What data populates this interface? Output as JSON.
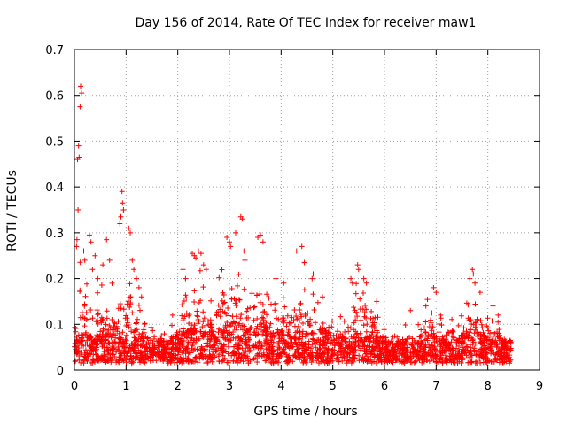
{
  "chart_data": {
    "type": "scatter",
    "title": "Day 156 of 2014, Rate Of TEC Index for receiver maw1",
    "xlabel": "GPS time / hours",
    "ylabel": "ROTI / TECUs",
    "xlim": [
      0,
      9
    ],
    "ylim": [
      0,
      0.7
    ],
    "xticks": [
      "0",
      "1",
      "2",
      "3",
      "4",
      "5",
      "6",
      "7",
      "8",
      "9"
    ],
    "yticks": [
      "0",
      "0.1",
      "0.2",
      "0.3",
      "0.4",
      "0.5",
      "0.6",
      "0.7"
    ],
    "grid": true,
    "marker": "plus",
    "color": "#ff0000",
    "x_range_of_data": [
      0,
      8.45
    ],
    "series": [
      {
        "name": "ROTI",
        "profile": [
          [
            0.0,
            0.03,
            0.1
          ],
          [
            0.1,
            0.05,
            0.25
          ],
          [
            0.2,
            0.05,
            0.28
          ],
          [
            0.3,
            0.04,
            0.22
          ],
          [
            0.4,
            0.04,
            0.18
          ],
          [
            0.5,
            0.05,
            0.16
          ],
          [
            0.6,
            0.06,
            0.18
          ],
          [
            0.7,
            0.06,
            0.2
          ],
          [
            0.8,
            0.04,
            0.12
          ],
          [
            0.9,
            0.06,
            0.25
          ],
          [
            1.0,
            0.05,
            0.24
          ],
          [
            1.1,
            0.04,
            0.22
          ],
          [
            1.2,
            0.04,
            0.15
          ],
          [
            1.3,
            0.03,
            0.1
          ],
          [
            1.4,
            0.03,
            0.08
          ],
          [
            1.5,
            0.03,
            0.08
          ],
          [
            1.6,
            0.03,
            0.07
          ],
          [
            1.7,
            0.03,
            0.07
          ],
          [
            1.8,
            0.03,
            0.07
          ],
          [
            1.9,
            0.04,
            0.09
          ],
          [
            2.0,
            0.04,
            0.1
          ],
          [
            2.1,
            0.05,
            0.15
          ],
          [
            2.2,
            0.05,
            0.18
          ],
          [
            2.3,
            0.06,
            0.24
          ],
          [
            2.4,
            0.05,
            0.22
          ],
          [
            2.5,
            0.05,
            0.16
          ],
          [
            2.6,
            0.05,
            0.14
          ],
          [
            2.7,
            0.05,
            0.16
          ],
          [
            2.8,
            0.06,
            0.2
          ],
          [
            2.9,
            0.06,
            0.24
          ],
          [
            3.0,
            0.07,
            0.22
          ],
          [
            3.1,
            0.07,
            0.2
          ],
          [
            3.2,
            0.07,
            0.22
          ],
          [
            3.3,
            0.06,
            0.18
          ],
          [
            3.4,
            0.06,
            0.18
          ],
          [
            3.5,
            0.06,
            0.22
          ],
          [
            3.6,
            0.07,
            0.22
          ],
          [
            3.7,
            0.06,
            0.16
          ],
          [
            3.8,
            0.06,
            0.15
          ],
          [
            3.9,
            0.05,
            0.14
          ],
          [
            4.0,
            0.05,
            0.15
          ],
          [
            4.1,
            0.05,
            0.16
          ],
          [
            4.2,
            0.05,
            0.17
          ],
          [
            4.3,
            0.05,
            0.18
          ],
          [
            4.4,
            0.05,
            0.2
          ],
          [
            4.5,
            0.05,
            0.16
          ],
          [
            4.6,
            0.05,
            0.15
          ],
          [
            4.7,
            0.04,
            0.14
          ],
          [
            4.8,
            0.04,
            0.12
          ],
          [
            4.9,
            0.04,
            0.11
          ],
          [
            5.0,
            0.04,
            0.1
          ],
          [
            5.1,
            0.04,
            0.1
          ],
          [
            5.2,
            0.04,
            0.11
          ],
          [
            5.3,
            0.04,
            0.12
          ],
          [
            5.4,
            0.04,
            0.14
          ],
          [
            5.5,
            0.05,
            0.2
          ],
          [
            5.6,
            0.04,
            0.16
          ],
          [
            5.7,
            0.04,
            0.16
          ],
          [
            5.8,
            0.04,
            0.12
          ],
          [
            5.9,
            0.04,
            0.1
          ],
          [
            6.0,
            0.03,
            0.08
          ],
          [
            6.1,
            0.03,
            0.08
          ],
          [
            6.2,
            0.03,
            0.07
          ],
          [
            6.3,
            0.03,
            0.07
          ],
          [
            6.4,
            0.03,
            0.08
          ],
          [
            6.5,
            0.03,
            0.09
          ],
          [
            6.6,
            0.04,
            0.1
          ],
          [
            6.7,
            0.04,
            0.12
          ],
          [
            6.8,
            0.04,
            0.13
          ],
          [
            6.9,
            0.04,
            0.15
          ],
          [
            7.0,
            0.04,
            0.12
          ],
          [
            7.1,
            0.04,
            0.1
          ],
          [
            7.2,
            0.03,
            0.09
          ],
          [
            7.3,
            0.03,
            0.1
          ],
          [
            7.4,
            0.03,
            0.1
          ],
          [
            7.5,
            0.04,
            0.11
          ],
          [
            7.6,
            0.05,
            0.14
          ],
          [
            7.7,
            0.05,
            0.16
          ],
          [
            7.8,
            0.05,
            0.14
          ],
          [
            7.9,
            0.04,
            0.12
          ],
          [
            8.0,
            0.04,
            0.12
          ],
          [
            8.1,
            0.04,
            0.1
          ],
          [
            8.2,
            0.04,
            0.1
          ],
          [
            8.3,
            0.03,
            0.08
          ],
          [
            8.4,
            0.03,
            0.06
          ],
          [
            8.45,
            0.03,
            0.05
          ]
        ],
        "outliers": [
          [
            0.12,
            0.62
          ],
          [
            0.14,
            0.605
          ],
          [
            0.11,
            0.575
          ],
          [
            0.08,
            0.49
          ],
          [
            0.09,
            0.465
          ],
          [
            0.06,
            0.46
          ],
          [
            0.07,
            0.35
          ],
          [
            0.29,
            0.295
          ],
          [
            0.05,
            0.285
          ],
          [
            0.04,
            0.27
          ],
          [
            0.18,
            0.26
          ],
          [
            0.2,
            0.24
          ],
          [
            0.32,
            0.28
          ],
          [
            0.45,
            0.2
          ],
          [
            0.62,
            0.285
          ],
          [
            0.68,
            0.24
          ],
          [
            0.88,
            0.32
          ],
          [
            0.9,
            0.335
          ],
          [
            0.92,
            0.39
          ],
          [
            0.93,
            0.365
          ],
          [
            0.95,
            0.35
          ],
          [
            1.05,
            0.31
          ],
          [
            1.08,
            0.3
          ],
          [
            1.12,
            0.24
          ],
          [
            1.15,
            0.22
          ],
          [
            1.2,
            0.2
          ],
          [
            1.25,
            0.18
          ],
          [
            2.28,
            0.255
          ],
          [
            2.32,
            0.25
          ],
          [
            2.35,
            0.245
          ],
          [
            2.4,
            0.26
          ],
          [
            2.45,
            0.255
          ],
          [
            2.5,
            0.23
          ],
          [
            2.55,
            0.22
          ],
          [
            2.95,
            0.29
          ],
          [
            3.0,
            0.28
          ],
          [
            3.02,
            0.27
          ],
          [
            3.12,
            0.3
          ],
          [
            3.22,
            0.335
          ],
          [
            3.25,
            0.33
          ],
          [
            3.28,
            0.26
          ],
          [
            3.55,
            0.29
          ],
          [
            3.6,
            0.295
          ],
          [
            3.65,
            0.28
          ],
          [
            3.9,
            0.2
          ],
          [
            4.05,
            0.19
          ],
          [
            4.3,
            0.26
          ],
          [
            4.4,
            0.27
          ],
          [
            4.45,
            0.235
          ],
          [
            4.6,
            0.2
          ],
          [
            4.62,
            0.21
          ],
          [
            5.35,
            0.2
          ],
          [
            5.38,
            0.19
          ],
          [
            5.48,
            0.23
          ],
          [
            5.5,
            0.22
          ],
          [
            5.6,
            0.2
          ],
          [
            5.65,
            0.19
          ],
          [
            6.95,
            0.18
          ],
          [
            7.0,
            0.17
          ],
          [
            7.65,
            0.2
          ],
          [
            7.7,
            0.22
          ],
          [
            7.72,
            0.21
          ],
          [
            7.75,
            0.19
          ],
          [
            3.3,
            0.24
          ],
          [
            2.1,
            0.22
          ],
          [
            2.15,
            0.2
          ],
          [
            1.3,
            0.16
          ],
          [
            0.55,
            0.23
          ],
          [
            0.4,
            0.25
          ],
          [
            0.35,
            0.22
          ],
          [
            4.8,
            0.16
          ],
          [
            6.5,
            0.13
          ],
          [
            8.1,
            0.14
          ],
          [
            8.2,
            0.12
          ],
          [
            7.85,
            0.17
          ],
          [
            5.85,
            0.15
          ],
          [
            6.8,
            0.14
          ],
          [
            1.9,
            0.12
          ]
        ]
      }
    ]
  }
}
